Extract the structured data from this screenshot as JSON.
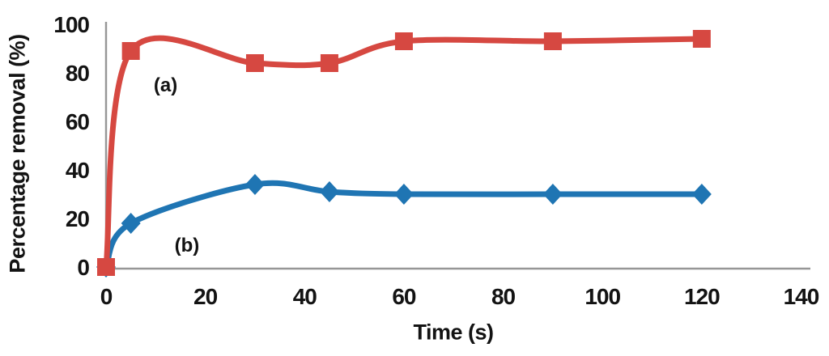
{
  "chart_data": {
    "type": "line",
    "title": "",
    "xlabel": "Time (s)",
    "ylabel": "Percentage removal (%)",
    "xlim": [
      0,
      140
    ],
    "ylim": [
      0,
      100
    ],
    "x_ticks": [
      0,
      20,
      40,
      60,
      80,
      100,
      120,
      140
    ],
    "y_ticks": [
      0,
      20,
      40,
      60,
      80,
      100
    ],
    "grid": false,
    "legend": "none",
    "x": [
      0,
      5,
      30,
      45,
      60,
      90,
      120
    ],
    "series": [
      {
        "id": "a",
        "name": "(a)",
        "marker": "square",
        "color": "#D64841",
        "smooth": true,
        "values": [
          0,
          89,
          84,
          84,
          93,
          93,
          94
        ]
      },
      {
        "id": "b",
        "name": "(b)",
        "marker": "diamond",
        "color": "#1F75B3",
        "smooth": true,
        "values": [
          0,
          18,
          34,
          31,
          30,
          30,
          30
        ]
      }
    ],
    "annotations": [
      {
        "text": "(a)",
        "t": 12,
        "v": 74.7
      },
      {
        "text": "(b)",
        "t": 16.3,
        "v": 8.7
      }
    ],
    "colors": {
      "axis": "#969696",
      "text": "#131313"
    }
  }
}
